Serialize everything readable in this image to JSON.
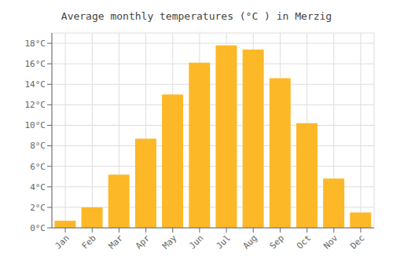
{
  "chart_data": {
    "type": "bar",
    "title": "Average monthly temperatures (°C ) in Merzig",
    "categories": [
      "Jan",
      "Feb",
      "Mar",
      "Apr",
      "May",
      "Jun",
      "Jul",
      "Aug",
      "Sep",
      "Oct",
      "Nov",
      "Dec"
    ],
    "values": [
      0.7,
      2.0,
      5.2,
      8.7,
      13.0,
      16.1,
      17.8,
      17.4,
      14.6,
      10.2,
      4.8,
      1.5
    ],
    "color": "#FDB827",
    "ylim": [
      0,
      19
    ],
    "yticks": [
      {
        "value": 0,
        "label": "0°C"
      },
      {
        "value": 2,
        "label": "2°C"
      },
      {
        "value": 4,
        "label": "4°C"
      },
      {
        "value": 6,
        "label": "6°C"
      },
      {
        "value": 8,
        "label": "8°C"
      },
      {
        "value": 10,
        "label": "10°C"
      },
      {
        "value": 12,
        "label": "12°C"
      },
      {
        "value": 14,
        "label": "14°C"
      },
      {
        "value": 16,
        "label": "16°C"
      },
      {
        "value": 18,
        "label": "18°C"
      }
    ],
    "grid": true
  }
}
